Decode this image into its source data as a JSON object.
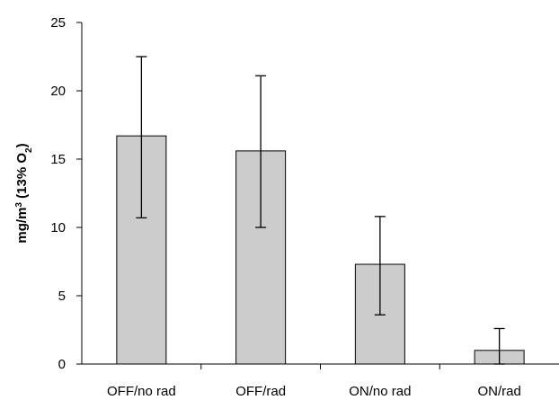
{
  "chart_data": {
    "type": "bar",
    "title": "",
    "xlabel": "",
    "ylabel": {
      "base": "mg/m",
      "sup": "3",
      "mid": " (13% O",
      "sub": "2",
      "end": ")"
    },
    "categories": [
      "OFF/no rad",
      "OFF/rad",
      "ON/no rad",
      "ON/rad"
    ],
    "values": [
      16.7,
      15.6,
      7.3,
      1.0
    ],
    "error_low": [
      10.7,
      10.0,
      3.6,
      0.0
    ],
    "error_high": [
      22.5,
      21.1,
      10.8,
      2.6
    ],
    "ylim": [
      0,
      25
    ],
    "yticks": [
      0,
      5,
      10,
      15,
      20,
      25
    ],
    "grid": false,
    "legend": false,
    "colors": {
      "bar_fill": "#cccccc",
      "bar_stroke": "#000000",
      "axis": "#000000"
    }
  }
}
